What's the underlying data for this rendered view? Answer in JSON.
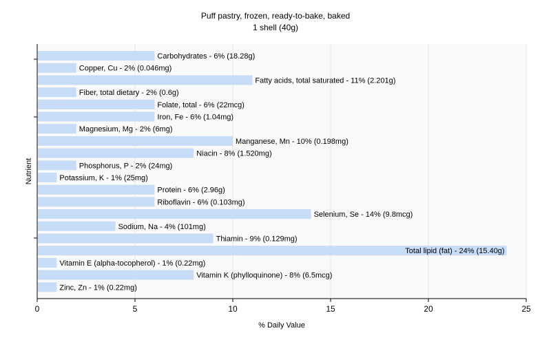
{
  "chart_data": {
    "type": "bar",
    "orientation": "horizontal",
    "title": "Puff pastry, frozen, ready-to-bake, baked",
    "subtitle": "1 shell (40g)",
    "xlabel": "% Daily Value",
    "ylabel": "Nutrient",
    "xlim": [
      0,
      25
    ],
    "xticks": [
      0,
      5,
      10,
      15,
      20,
      25
    ],
    "grid": true,
    "bar_color": "#c6dcf7",
    "categories": [
      "Carbohydrates",
      "Copper, Cu",
      "Fatty acids, total saturated",
      "Fiber, total dietary",
      "Folate, total",
      "Iron, Fe",
      "Magnesium, Mg",
      "Manganese, Mn",
      "Niacin",
      "Phosphorus, P",
      "Potassium, K",
      "Protein",
      "Riboflavin",
      "Selenium, Se",
      "Sodium, Na",
      "Thiamin",
      "Total lipid (fat)",
      "Vitamin E (alpha-tocopherol)",
      "Vitamin K (phylloquinone)",
      "Zinc, Zn"
    ],
    "values": [
      6,
      2,
      11,
      2,
      6,
      6,
      2,
      10,
      8,
      2,
      1,
      6,
      6,
      14,
      4,
      9,
      24,
      1,
      8,
      1
    ],
    "labels": [
      "Carbohydrates - 6% (18.28g)",
      "Copper, Cu - 2% (0.046mg)",
      "Fatty acids, total saturated - 11% (2.201g)",
      "Fiber, total dietary - 2% (0.6g)",
      "Folate, total - 6% (22mcg)",
      "Iron, Fe - 6% (1.04mg)",
      "Magnesium, Mg - 2% (6mg)",
      "Manganese, Mn - 10% (0.198mg)",
      "Niacin - 8% (1.520mg)",
      "Phosphorus, P - 2% (24mg)",
      "Potassium, K - 1% (25mg)",
      "Protein - 6% (2.96g)",
      "Riboflavin - 6% (0.103mg)",
      "Selenium, Se - 14% (9.8mcg)",
      "Sodium, Na - 4% (101mg)",
      "Thiamin - 9% (0.129mg)",
      "Total lipid (fat) - 24% (15.40g)",
      "Vitamin E (alpha-tocopherol) - 1% (0.22mg)",
      "Vitamin K (phylloquinone) - 8% (6.5mcg)",
      "Zinc, Zn - 1% (0.22mg)"
    ]
  }
}
